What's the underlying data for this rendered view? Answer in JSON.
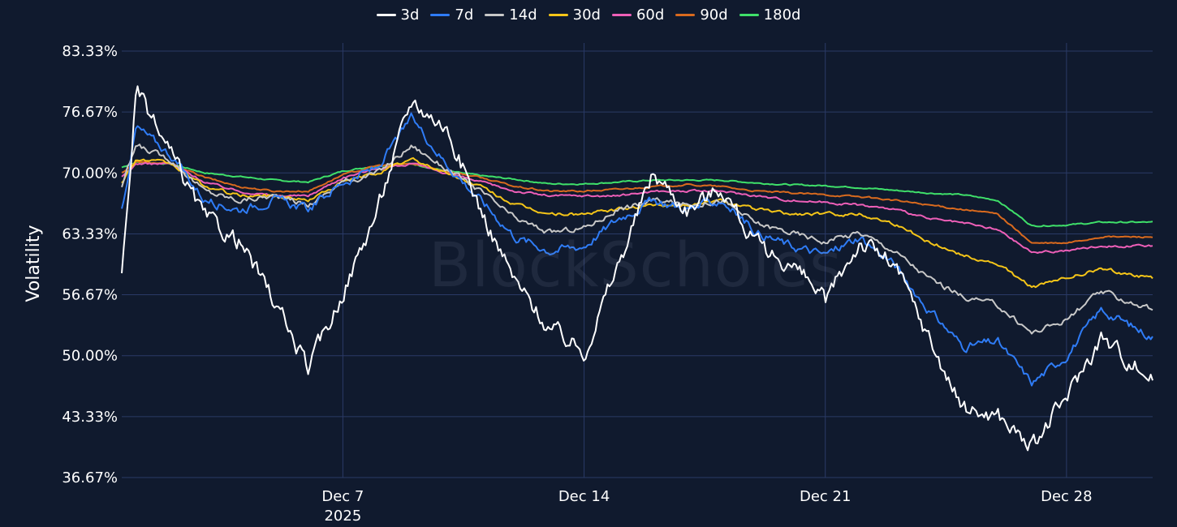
{
  "watermark": "BlockScholes",
  "chart_data": {
    "type": "line",
    "ylabel": "Volatility",
    "xlabel": "",
    "ylim": [
      36.67,
      83.33
    ],
    "yticks": [
      "83.33%",
      "76.67%",
      "70.00%",
      "63.33%",
      "56.67%",
      "50.00%",
      "43.33%",
      "36.67%"
    ],
    "ytick_values": [
      83.33,
      76.67,
      70.0,
      63.33,
      56.67,
      50.0,
      43.33,
      36.67
    ],
    "x_start": "2025-11-30T14:00",
    "x_end": "2025-12-30T12:00",
    "xticks": [
      {
        "date": "2025-12-07",
        "label": "Dec 7",
        "sublabel": "2025"
      },
      {
        "date": "2025-12-14",
        "label": "Dec 14",
        "sublabel": ""
      },
      {
        "date": "2025-12-21",
        "label": "Dec 21",
        "sublabel": ""
      },
      {
        "date": "2025-12-28",
        "label": "Dec 28",
        "sublabel": ""
      }
    ],
    "grid": true,
    "legend_position": "top-center",
    "dates": [
      "2025-11-30",
      "2025-12-01",
      "2025-12-02",
      "2025-12-03",
      "2025-12-04",
      "2025-12-05",
      "2025-12-06",
      "2025-12-07",
      "2025-12-08",
      "2025-12-09",
      "2025-12-10",
      "2025-12-11",
      "2025-12-12",
      "2025-12-13",
      "2025-12-14",
      "2025-12-15",
      "2025-12-16",
      "2025-12-17",
      "2025-12-18",
      "2025-12-19",
      "2025-12-20",
      "2025-12-21",
      "2025-12-22",
      "2025-12-23",
      "2025-12-24",
      "2025-12-25",
      "2025-12-26",
      "2025-12-27",
      "2025-12-28",
      "2025-12-29",
      "2025-12-30"
    ],
    "series": [
      {
        "name": "3d",
        "color": "#ffffff",
        "values": [
          58.5,
          79.0,
          72.0,
          65.0,
          62.5,
          56.0,
          48.5,
          57.0,
          66.0,
          78.0,
          75.0,
          66.0,
          58.0,
          53.0,
          50.5,
          60.0,
          70.0,
          66.0,
          68.5,
          62.0,
          60.0,
          56.0,
          62.5,
          60.0,
          52.0,
          44.0,
          43.5,
          40.0,
          45.5,
          52.0,
          47.5
        ]
      },
      {
        "name": "7d",
        "color": "#2f7cf6",
        "values": [
          66.0,
          75.0,
          72.0,
          67.0,
          66.0,
          67.0,
          66.0,
          69.0,
          70.5,
          76.0,
          71.0,
          67.0,
          63.0,
          61.5,
          62.0,
          65.0,
          67.0,
          66.0,
          67.0,
          63.5,
          62.0,
          61.0,
          63.0,
          60.0,
          55.0,
          51.0,
          51.5,
          47.0,
          50.0,
          55.0,
          52.0
        ]
      },
      {
        "name": "14d",
        "color": "#c8c8c8",
        "values": [
          68.5,
          73.0,
          71.5,
          68.0,
          67.0,
          67.5,
          66.5,
          69.0,
          70.0,
          73.0,
          70.5,
          68.0,
          65.0,
          63.5,
          64.0,
          66.0,
          67.0,
          66.5,
          67.0,
          64.5,
          63.5,
          62.5,
          63.5,
          61.5,
          58.5,
          56.5,
          55.5,
          52.5,
          54.0,
          57.0,
          55.0
        ]
      },
      {
        "name": "30d",
        "color": "#f5c518",
        "values": [
          69.0,
          71.5,
          71.0,
          68.5,
          67.5,
          67.5,
          67.0,
          69.0,
          70.0,
          71.5,
          70.0,
          68.5,
          66.5,
          65.5,
          65.5,
          66.0,
          66.5,
          66.5,
          67.0,
          66.0,
          65.5,
          65.5,
          65.5,
          64.5,
          62.5,
          61.0,
          60.0,
          57.5,
          58.5,
          59.5,
          58.5
        ]
      },
      {
        "name": "60d",
        "color": "#ee5fb8",
        "values": [
          69.5,
          71.0,
          71.0,
          69.0,
          68.0,
          67.5,
          67.5,
          69.5,
          70.5,
          71.0,
          70.0,
          69.0,
          68.0,
          67.5,
          67.5,
          67.5,
          68.0,
          68.0,
          68.0,
          67.5,
          67.0,
          66.8,
          66.5,
          66.0,
          65.0,
          64.5,
          63.8,
          61.3,
          61.5,
          62.0,
          62.0
        ]
      },
      {
        "name": "90d",
        "color": "#d96a1e",
        "values": [
          70.0,
          71.2,
          71.0,
          69.5,
          68.5,
          68.0,
          68.0,
          69.8,
          70.8,
          71.0,
          70.2,
          69.5,
          68.5,
          68.0,
          68.0,
          68.2,
          68.5,
          68.7,
          68.5,
          68.0,
          67.8,
          67.6,
          67.4,
          67.0,
          66.5,
          66.0,
          65.5,
          62.3,
          62.3,
          63.0,
          63.0
        ]
      },
      {
        "name": "180d",
        "color": "#3fe06a",
        "values": [
          70.6,
          71.2,
          71.0,
          70.0,
          69.6,
          69.2,
          69.0,
          70.2,
          70.8,
          71.0,
          70.2,
          69.7,
          69.3,
          68.8,
          68.8,
          69.0,
          69.2,
          69.2,
          69.2,
          68.9,
          68.7,
          68.6,
          68.4,
          68.1,
          67.8,
          67.6,
          67.0,
          64.2,
          64.3,
          64.6,
          64.6
        ]
      }
    ]
  }
}
